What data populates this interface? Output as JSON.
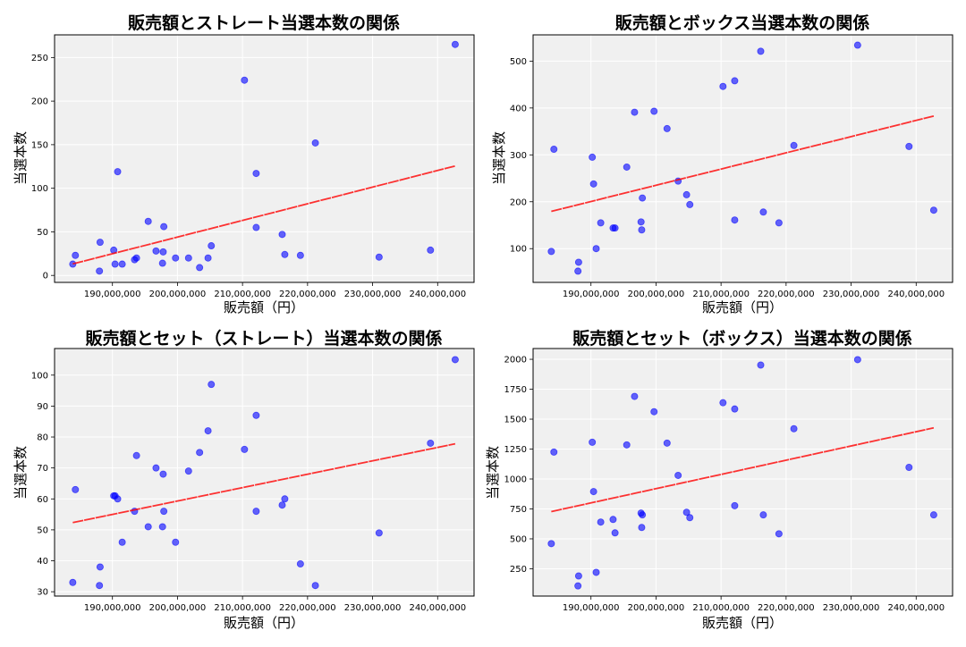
{
  "chart_data": [
    {
      "type": "scatter",
      "title": "販売額とストレート当選本数の関係",
      "xlabel": "販売額（円）",
      "ylabel": "当選本数",
      "xlim": [
        181100000,
        245600000
      ],
      "ylim": [
        -8,
        276
      ],
      "xticks": [
        190000000,
        200000000,
        210000000,
        220000000,
        230000000,
        240000000
      ],
      "yticks": [
        0,
        50,
        100,
        150,
        200,
        250
      ],
      "grid": true,
      "trendline": true,
      "x": [
        183900000,
        184300000,
        188000000,
        188100000,
        190200000,
        190400000,
        190800000,
        191500000,
        193400000,
        193700000,
        195500000,
        196700000,
        197700000,
        197800000,
        197900000,
        199700000,
        201700000,
        203400000,
        204700000,
        205200000,
        210300000,
        212100000,
        212100000,
        216100000,
        216500000,
        218900000,
        221200000,
        231000000,
        238900000,
        242700000
      ],
      "y": [
        13,
        23,
        5,
        38,
        29,
        13,
        119,
        13,
        18,
        20,
        62,
        28,
        14,
        27,
        56,
        20,
        20,
        9,
        20,
        34,
        224,
        117,
        55,
        47,
        24,
        23,
        152,
        21,
        29,
        265
      ]
    },
    {
      "type": "scatter",
      "title": "販売額とボックス当選本数の関係",
      "xlabel": "販売額（円）",
      "ylabel": "当選本数",
      "xlim": [
        181100000,
        245600000
      ],
      "ylim": [
        28,
        556
      ],
      "xticks": [
        190000000,
        200000000,
        210000000,
        220000000,
        230000000,
        240000000
      ],
      "yticks": [
        100,
        200,
        300,
        400,
        500
      ],
      "grid": true,
      "trendline": true,
      "x": [
        183900000,
        184300000,
        188000000,
        188100000,
        190200000,
        190400000,
        190800000,
        191500000,
        193400000,
        193700000,
        195500000,
        196700000,
        197700000,
        197800000,
        197900000,
        199700000,
        201700000,
        203400000,
        204700000,
        205200000,
        210300000,
        212100000,
        212100000,
        216100000,
        216500000,
        218900000,
        221200000,
        231000000,
        238900000,
        242700000
      ],
      "y": [
        94,
        312,
        52,
        71,
        295,
        238,
        100,
        155,
        144,
        144,
        274,
        391,
        157,
        140,
        208,
        393,
        356,
        244,
        215,
        194,
        446,
        458,
        161,
        521,
        178,
        155,
        320,
        534,
        318,
        182
      ]
    },
    {
      "type": "scatter",
      "title": "販売額とセット（ストレート）当選本数の関係",
      "xlabel": "販売額（円）",
      "ylabel": "当選本数",
      "xlim": [
        181100000,
        245600000
      ],
      "ylim": [
        28.6,
        108.6
      ],
      "xticks": [
        190000000,
        200000000,
        210000000,
        220000000,
        230000000,
        240000000
      ],
      "yticks": [
        30,
        40,
        50,
        60,
        70,
        80,
        90,
        100
      ],
      "grid": true,
      "trendline": true,
      "x": [
        183900000,
        184300000,
        188000000,
        188100000,
        190200000,
        190400000,
        190800000,
        191500000,
        193400000,
        193700000,
        195500000,
        196700000,
        197700000,
        197800000,
        197900000,
        199700000,
        201700000,
        203400000,
        204700000,
        205200000,
        210300000,
        212100000,
        212100000,
        216100000,
        216500000,
        218900000,
        221200000,
        231000000,
        238900000,
        242700000
      ],
      "y": [
        33,
        63,
        32,
        38,
        61,
        61,
        60,
        46,
        56,
        74,
        51,
        70,
        51,
        68,
        56,
        46,
        69,
        75,
        82,
        97,
        76,
        87,
        56,
        58,
        60,
        39,
        32,
        49,
        78,
        105
      ]
    },
    {
      "type": "scatter",
      "title": "販売額とセット（ボックス）当選本数の関係",
      "xlabel": "販売額（円）",
      "ylabel": "当選本数",
      "xlim": [
        181100000,
        245600000
      ],
      "ylim": [
        22,
        2090
      ],
      "xticks": [
        190000000,
        200000000,
        210000000,
        220000000,
        230000000,
        240000000
      ],
      "yticks": [
        250,
        500,
        750,
        1000,
        1250,
        1500,
        1750,
        2000
      ],
      "grid": true,
      "trendline": true,
      "x": [
        183900000,
        184300000,
        188000000,
        188100000,
        190200000,
        190400000,
        190800000,
        191500000,
        193400000,
        193700000,
        195500000,
        196700000,
        197700000,
        197800000,
        197900000,
        199700000,
        201700000,
        203400000,
        204700000,
        205200000,
        210300000,
        212100000,
        212100000,
        216100000,
        216500000,
        218900000,
        221200000,
        231000000,
        238900000,
        242700000
      ],
      "y": [
        460,
        1225,
        107,
        190,
        1307,
        895,
        220,
        640,
        662,
        550,
        1285,
        1690,
        715,
        595,
        700,
        1562,
        1300,
        1030,
        722,
        677,
        1637,
        1585,
        777,
        1952,
        700,
        542,
        1420,
        1997,
        1097,
        700
      ]
    }
  ],
  "colors": {
    "points": "#0000ff",
    "trendline": "#ff0000",
    "background": "#f0f0f0",
    "grid": "#ffffff"
  }
}
